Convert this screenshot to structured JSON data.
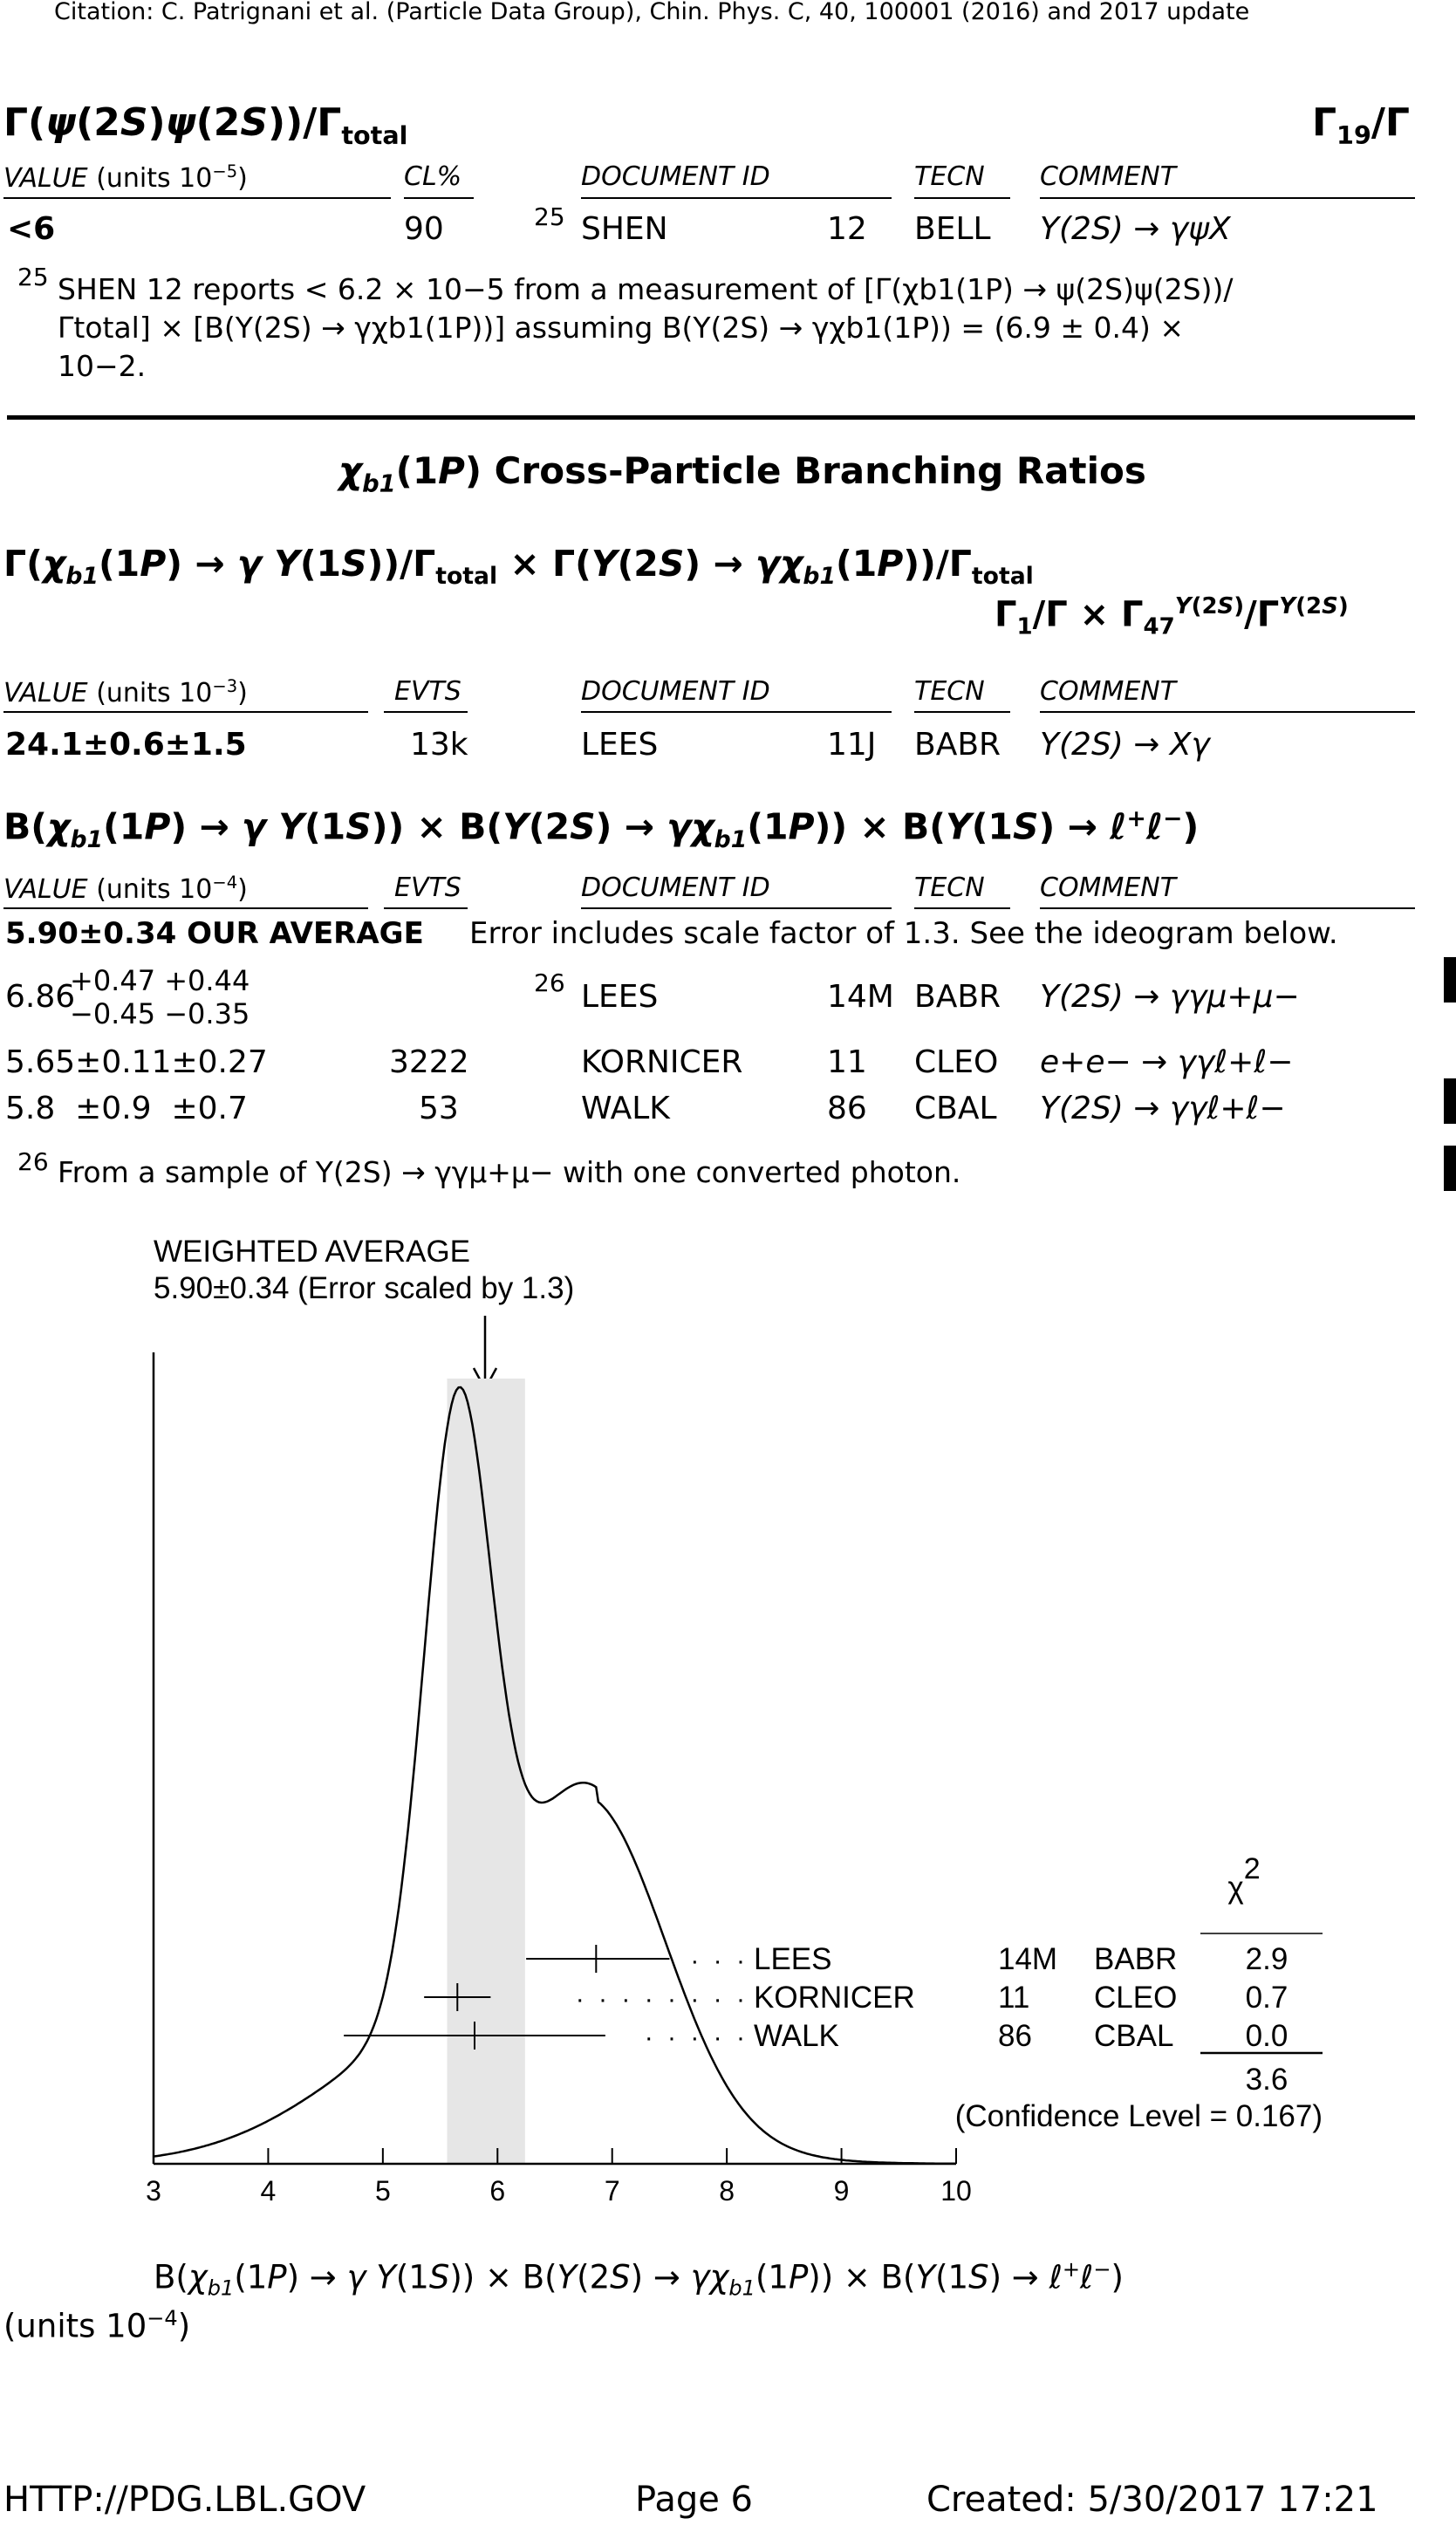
{
  "page": {
    "citation": "Citation: C. Patrignani et al. (Particle Data Group), Chin. Phys. C, 40, 100001 (2016) and 2017 update",
    "footer_left": "HTTP://PDG.LBL.GOV",
    "footer_center": "Page 6",
    "footer_right": "Created: 5/30/2017 17:21"
  },
  "section1": {
    "title": "Γ(ψ(2S)ψ(2S))/Γtotal",
    "ratio": "Γ19/Γ",
    "col_value": "VALUE (units 10−5)",
    "col_cl": "CL%",
    "col_doc": "DOCUMENT ID",
    "col_tecn": "TECN",
    "col_comment": "COMMENT",
    "row": {
      "value": "<6",
      "cl": "90",
      "ref": "25",
      "doc": "SHEN",
      "year": "12",
      "tecn": "BELL",
      "comment": "Υ(2S) → γψX"
    },
    "footnote_num": "25",
    "footnote_l1": "SHEN 12 reports < 6.2 × 10−5 from a measurement of [Γ(χb1(1P) → ψ(2S)ψ(2S))/",
    "footnote_l2": "Γtotal] × [B(Υ(2S) → γχb1(1P))] assuming B(Υ(2S) → γχb1(1P)) = (6.9 ± 0.4) ×",
    "footnote_l3": "10−2."
  },
  "section2": {
    "heading": "χb1(1P) Cross-Particle Branching Ratios",
    "title": "Γ(χb1(1P) → γΥ(1S))/Γtotal × Γ(Υ(2S) → γχb1(1P))/Γtotal",
    "ratio": "Γ1/Γ × Γ47Υ(2S)/ΓΥ(2S)",
    "col_value": "VALUE (units 10−3)",
    "col_evts": "EVTS",
    "col_doc": "DOCUMENT ID",
    "col_tecn": "TECN",
    "col_comment": "COMMENT",
    "row": {
      "value": "24.1±0.6±1.5",
      "evts": "13k",
      "doc": "LEES",
      "year": "11J",
      "tecn": "BABR",
      "comment": "Υ(2S) → Xγ"
    }
  },
  "section3": {
    "title": "B(χb1(1P) → γΥ(1S)) × B(Υ(2S) → γχb1(1P)) × B(Υ(1S) → ℓ+ℓ−)",
    "col_value": "VALUE (units 10−4)",
    "col_evts": "EVTS",
    "col_doc": "DOCUMENT ID",
    "col_tecn": "TECN",
    "col_comment": "COMMENT",
    "average": "5.90±0.34 OUR AVERAGE",
    "average_note": "Error includes scale factor of 1.3.  See the ideogram below.",
    "rows": [
      {
        "value": "6.86",
        "err_up": "+0.47 +0.44",
        "err_dn": "−0.45 −0.35",
        "evts": "",
        "ref": "26",
        "doc": "LEES",
        "year": "14M",
        "tecn": "BABR",
        "comment": "Υ(2S) → γγμ+μ−"
      },
      {
        "value": "5.65±0.11±0.27",
        "evts": "3222",
        "ref": "",
        "doc": "KORNICER",
        "year": "11",
        "tecn": "CLEO",
        "comment": "e+e− → γγℓ+ℓ−"
      },
      {
        "value": "5.8  ±0.9  ±0.7",
        "evts": "53",
        "ref": "",
        "doc": "WALK",
        "year": "86",
        "tecn": "CBAL",
        "comment": "Υ(2S) → γγℓ+ℓ−"
      }
    ],
    "footnote_num": "26",
    "footnote": "From a sample of Υ(2S) → γγμ+μ− with one converted photon."
  },
  "ideogram": {
    "weighted_title": "WEIGHTED AVERAGE",
    "weighted_value": "5.90±0.34 (Error scaled by 1.3)",
    "chi2_label": "χ2",
    "measurements": [
      {
        "name": "LEES",
        "year": "14M",
        "tecn": "BABR",
        "chi2": "2.9",
        "dots": "· · ·"
      },
      {
        "name": "KORNICER",
        "year": "11",
        "tecn": "CLEO",
        "chi2": "0.7",
        "dots": "· · · · · · · ·"
      },
      {
        "name": "WALK",
        "year": "86",
        "tecn": "CBAL",
        "chi2": "0.0",
        "dots": "· · · · ·"
      }
    ],
    "chi2_total": "3.6",
    "confidence": "(Confidence Level = 0.167)",
    "xlabel_l1": "B(χb1(1P) → γΥ(1S)) × B(Υ(2S) → γχb1(1P)) × B(Υ(1S) → ℓ+ℓ−)",
    "xlabel_l2": "(units 10−4)"
  },
  "chart_data": {
    "type": "scatter",
    "title": "WEIGHTED AVERAGE",
    "subtitle": "5.90±0.34 (Error scaled by 1.3)",
    "xlabel": "B(χb1(1P) → γΥ(1S)) × B(Υ(2S) → γχb1(1P)) × B(Υ(1S) → ℓ+ℓ−) (units 10−4)",
    "xlim": [
      3,
      10
    ],
    "xticks": [
      "3",
      "4",
      "5",
      "6",
      "7",
      "8",
      "9",
      "10"
    ],
    "average": {
      "value": 5.9,
      "error": 0.34,
      "band": [
        5.56,
        6.24
      ]
    },
    "points": [
      {
        "name": "LEES",
        "value": 6.86,
        "err_lo": 0.61,
        "err_hi": 0.64,
        "chi2": 2.9
      },
      {
        "name": "KORNICER",
        "value": 5.65,
        "err_lo": 0.29,
        "err_hi": 0.29,
        "chi2": 0.7
      },
      {
        "name": "WALK",
        "value": 5.8,
        "err_lo": 1.14,
        "err_hi": 1.14,
        "chi2": 0.0
      }
    ],
    "chi2_total": 3.6,
    "confidence_level": 0.167,
    "grid": false
  }
}
